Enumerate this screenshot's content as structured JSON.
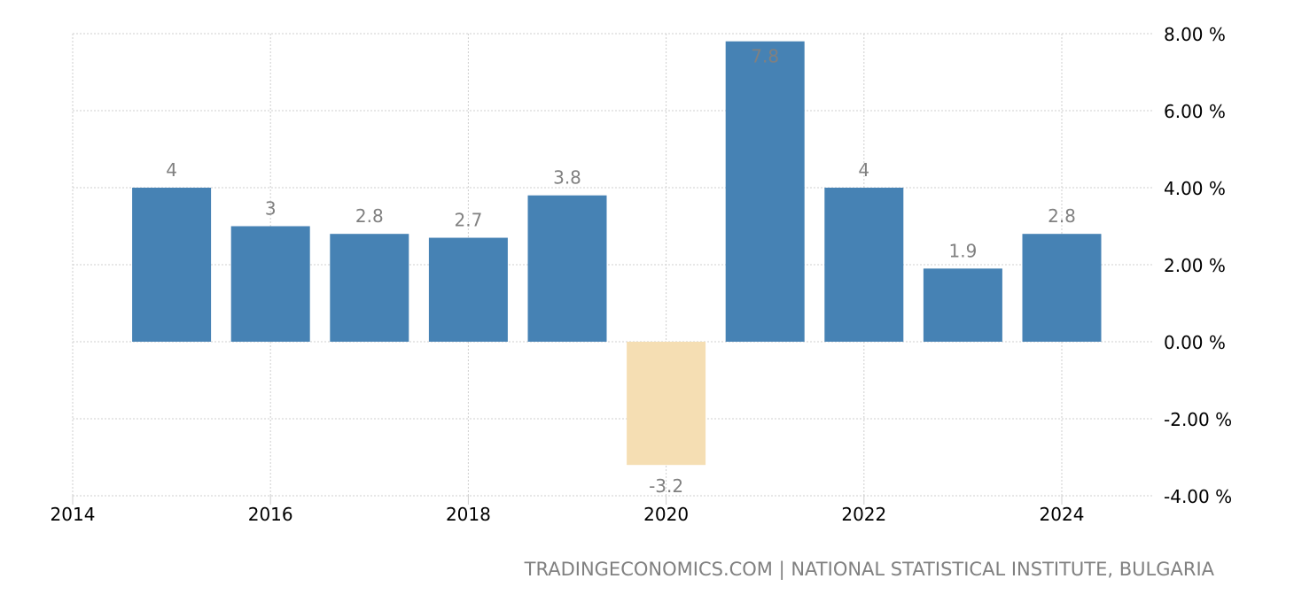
{
  "chart_data": {
    "type": "bar",
    "categories": [
      "2015",
      "2016",
      "2017",
      "2018",
      "2019",
      "2020",
      "2021",
      "2022",
      "2023",
      "2024"
    ],
    "values": [
      4,
      3,
      2.8,
      2.7,
      3.8,
      -3.2,
      7.8,
      4,
      1.9,
      2.8
    ],
    "data_labels": [
      "4",
      "3",
      "2.8",
      "2.7",
      "3.8",
      "-3.2",
      "7.8",
      "4",
      "1.9",
      "2.8"
    ],
    "x_ticks": [
      "2014",
      "2016",
      "2018",
      "2020",
      "2022",
      "2024"
    ],
    "y_ticks": [
      "8.00 %",
      "6.00 %",
      "4.00 %",
      "2.00 %",
      "0.00 %",
      "-2.00 %",
      "-4.00 %"
    ],
    "xlim": [
      2014,
      2025
    ],
    "ylim": [
      -4,
      8
    ],
    "grid": true,
    "y_axis_position": "right",
    "colors": {
      "positive": "#4682b4",
      "negative": "#f5deb3"
    }
  },
  "source": "TRADINGECONOMICS.COM | NATIONAL STATISTICAL INSTITUTE, BULGARIA"
}
